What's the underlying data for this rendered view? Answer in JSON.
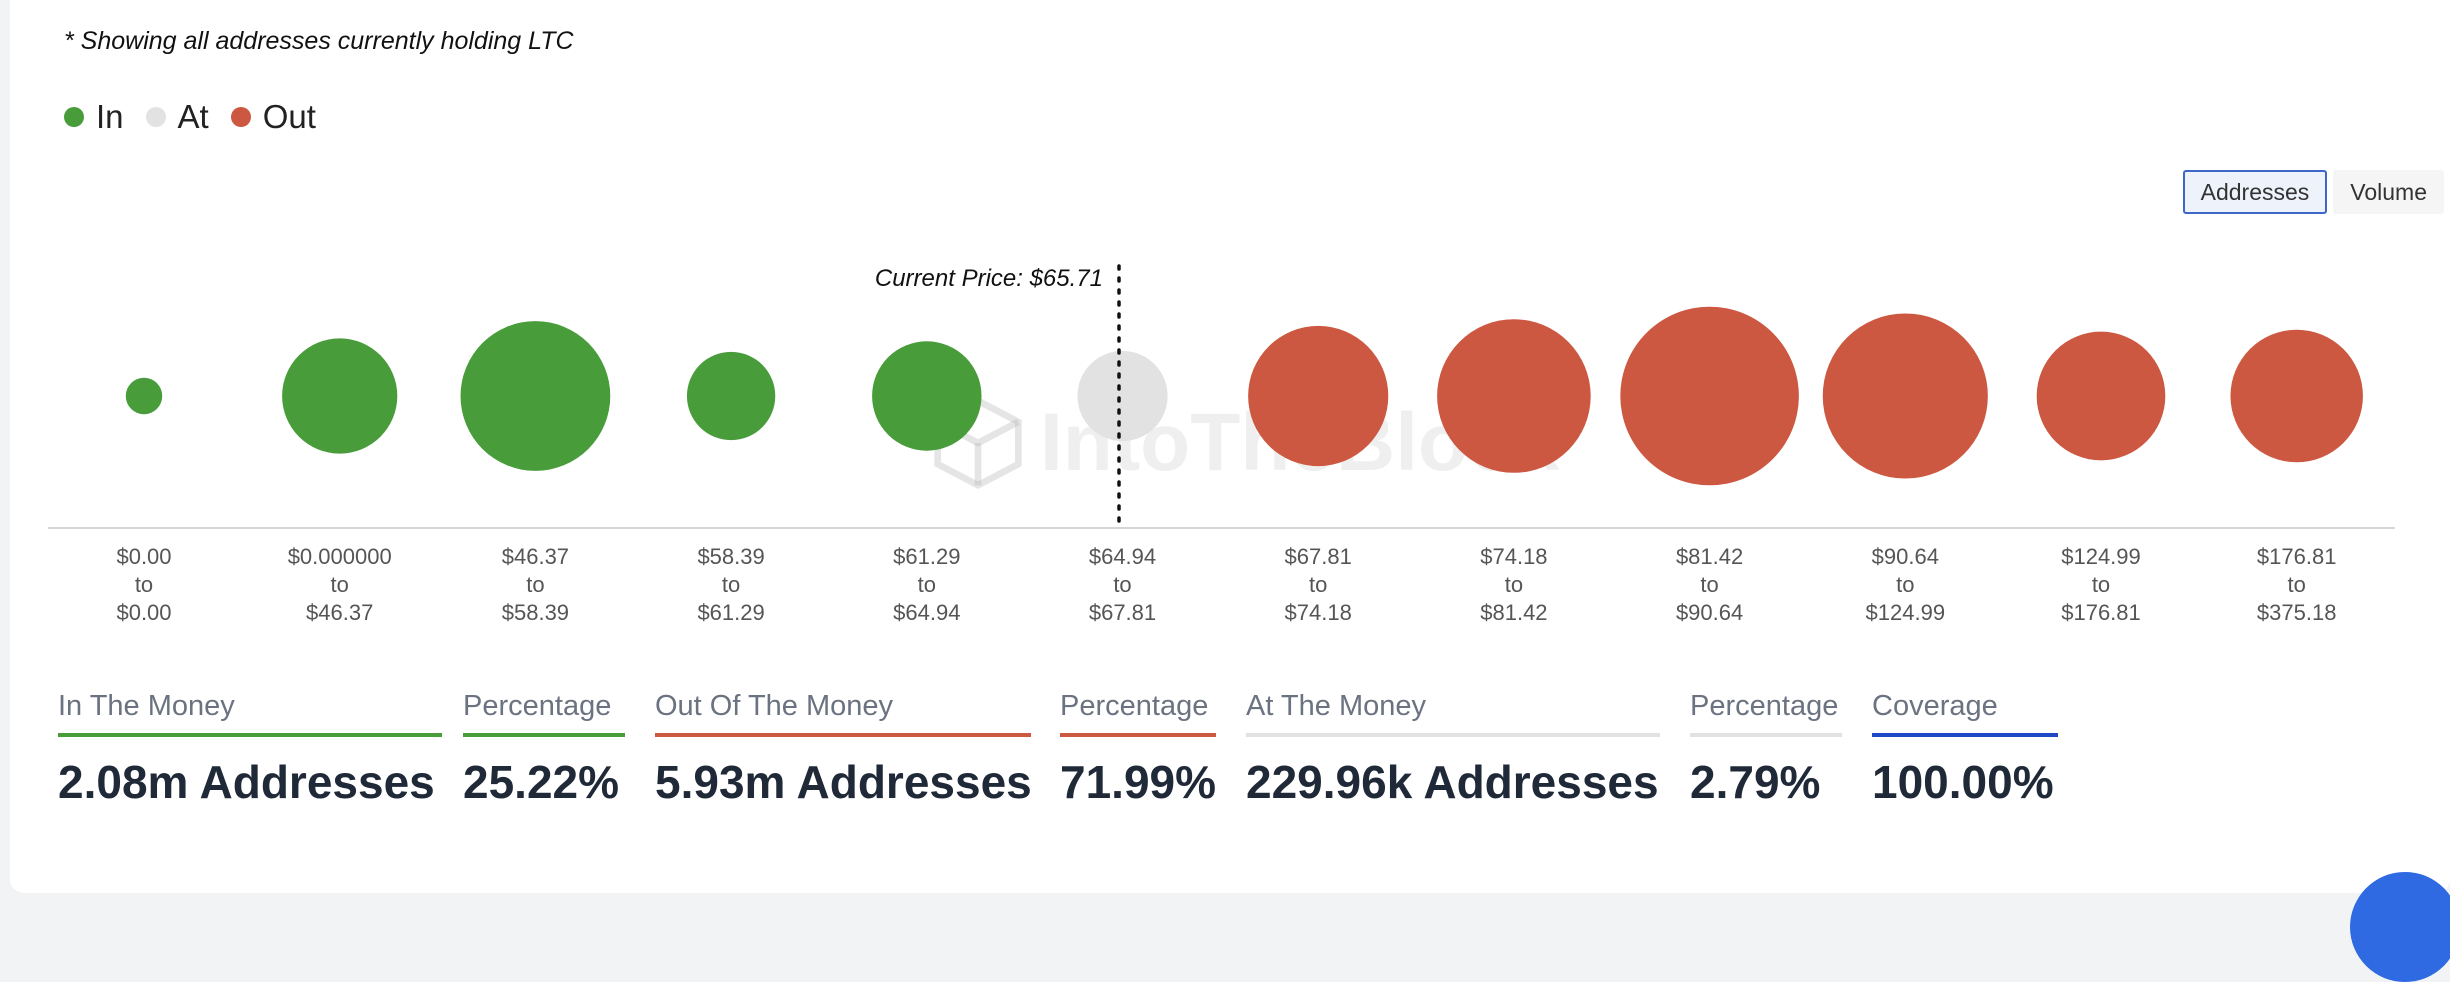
{
  "note": "* Showing all addresses currently holding LTC",
  "legend": [
    {
      "label": "In",
      "color": "#489c3a"
    },
    {
      "label": "At",
      "color": "#e2e2e2"
    },
    {
      "label": "Out",
      "color": "#cc5841"
    }
  ],
  "toggle": {
    "addresses_label": "Addresses",
    "volume_label": "Volume",
    "active": "Addresses"
  },
  "watermark": "IntoTheBlock",
  "chart_data": {
    "type": "bubble",
    "current_price_label": "Current Price: $65.71",
    "current_price": 65.71,
    "buckets": [
      {
        "from": "$0.00",
        "to": "$0.00",
        "status": "in",
        "relative_size": 0.19
      },
      {
        "from": "$0.000000",
        "to": "$46.37",
        "status": "in",
        "relative_size": 0.6
      },
      {
        "from": "$46.37",
        "to": "$58.39",
        "status": "in",
        "relative_size": 0.78
      },
      {
        "from": "$58.39",
        "to": "$61.29",
        "status": "in",
        "relative_size": 0.46
      },
      {
        "from": "$61.29",
        "to": "$64.94",
        "status": "in",
        "relative_size": 0.57
      },
      {
        "from": "$64.94",
        "to": "$67.81",
        "status": "at",
        "relative_size": 0.47
      },
      {
        "from": "$67.81",
        "to": "$74.18",
        "status": "out",
        "relative_size": 0.73
      },
      {
        "from": "$74.18",
        "to": "$81.42",
        "status": "out",
        "relative_size": 0.8
      },
      {
        "from": "$81.42",
        "to": "$90.64",
        "status": "out",
        "relative_size": 0.93
      },
      {
        "from": "$90.64",
        "to": "$124.99",
        "status": "out",
        "relative_size": 0.86
      },
      {
        "from": "$124.99",
        "to": "$176.81",
        "status": "out",
        "relative_size": 0.67
      },
      {
        "from": "$176.81",
        "to": "$375.18",
        "status": "out",
        "relative_size": 0.69
      }
    ],
    "to_word": "to",
    "colors": {
      "in": "#489c3a",
      "at": "#e2e2e2",
      "out": "#cc5841"
    }
  },
  "stats": [
    {
      "label": "In The Money",
      "value": "2.08m Addresses",
      "color": "#489c3a"
    },
    {
      "label": "Percentage",
      "value": "25.22%",
      "color": "#489c3a"
    },
    {
      "label": "Out Of The Money",
      "value": "5.93m Addresses",
      "color": "#cc5841"
    },
    {
      "label": "Percentage",
      "value": "71.99%",
      "color": "#cc5841"
    },
    {
      "label": "At The Money",
      "value": "229.96k Addresses",
      "color": "#e2e2e2"
    },
    {
      "label": "Percentage",
      "value": "2.79%",
      "color": "#e2e2e2"
    },
    {
      "label": "Coverage",
      "value": "100.00%",
      "color": "#2148c4"
    }
  ]
}
